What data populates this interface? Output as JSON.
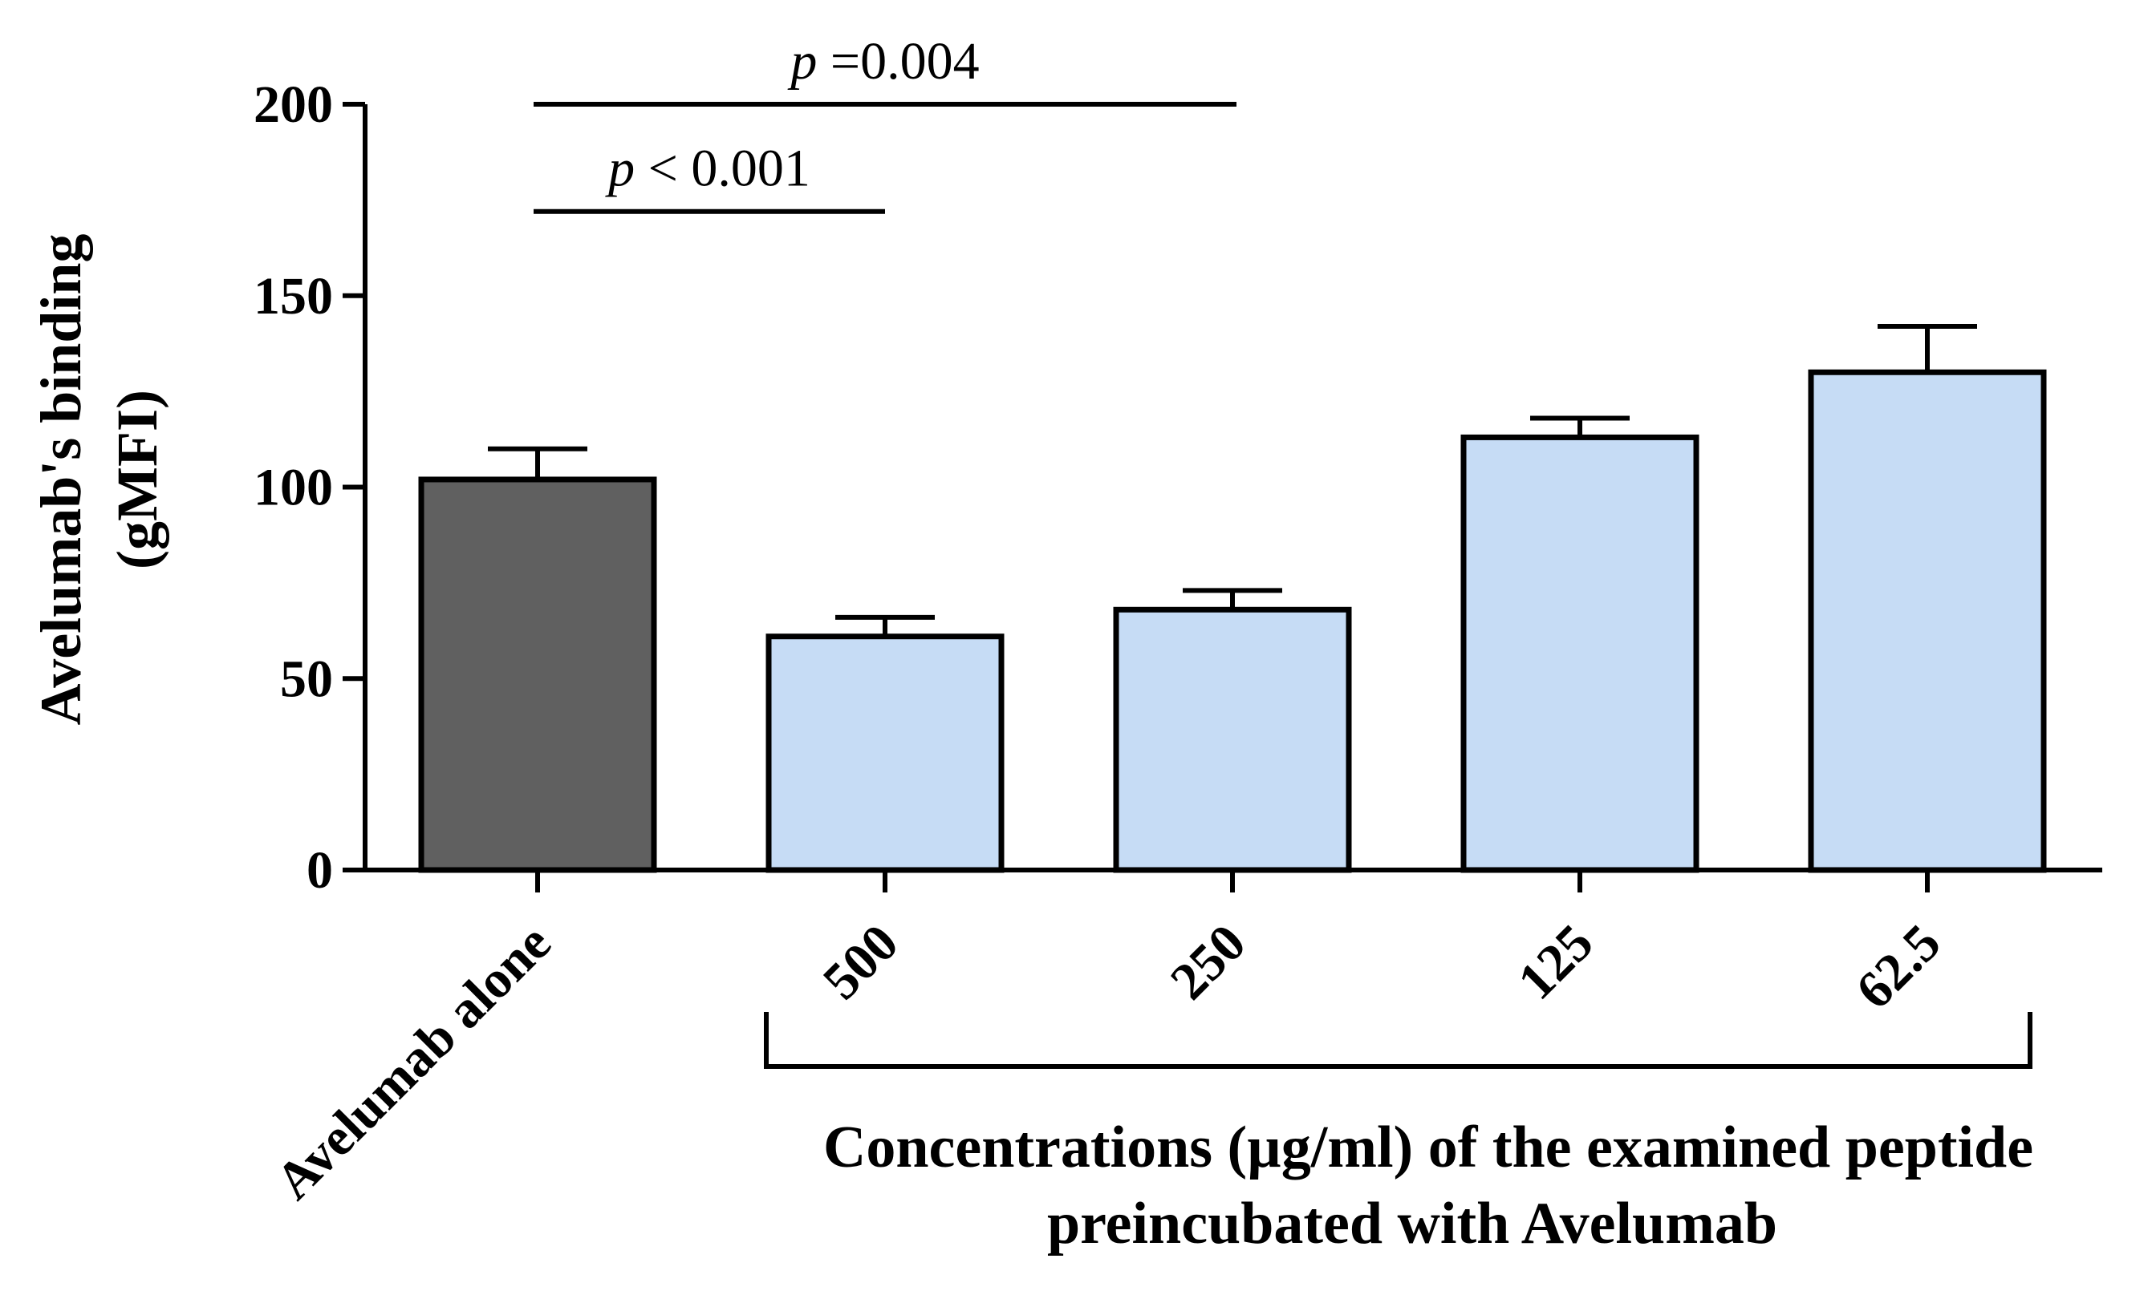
{
  "chart_data": {
    "type": "bar",
    "title": "",
    "ylabel": "Avelumab's binding (gMFI)",
    "ylabel_lines": [
      "Avelumab's binding",
      "(gMFI)"
    ],
    "xlabel": "Concentrations (µg/ml) of the examined peptide preincubated with Avelumab",
    "xlabel_lines": [
      "Concentrations (µg/ml) of the examined peptide",
      "preincubated with Avelumab"
    ],
    "ylim": [
      0,
      200
    ],
    "yticks": [
      0,
      50,
      100,
      150,
      200
    ],
    "categories": [
      "Avelumab alone",
      "500",
      "250",
      "125",
      "62.5"
    ],
    "values": [
      102,
      61,
      68,
      113,
      130
    ],
    "errors": [
      8,
      5,
      5,
      5,
      12
    ],
    "colors": [
      "#606060",
      "#c6dcf5",
      "#c6dcf5",
      "#c6dcf5",
      "#c6dcf5"
    ],
    "bracket_group": [
      "500",
      "250",
      "125",
      "62.5"
    ],
    "significance": [
      {
        "from": "Avelumab alone",
        "to": "250",
        "level": 200,
        "label_italic": "p",
        "label_rest": " =0.004"
      },
      {
        "from": "Avelumab alone",
        "to": "500",
        "level": 172,
        "label_italic": "p",
        "label_rest": " < 0.001"
      }
    ]
  }
}
